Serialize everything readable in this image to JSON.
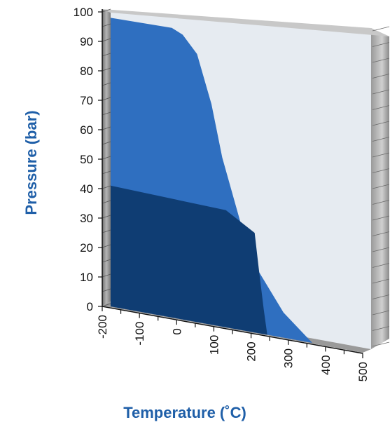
{
  "chart_data": {
    "type": "area",
    "title": "",
    "xlabel": "Temperature (˚C)",
    "ylabel": "Pressure (bar)",
    "xlim": [
      -200,
      500
    ],
    "ylim": [
      0,
      100
    ],
    "x_ticks": [
      "-200",
      "-100",
      "0",
      "100",
      "200",
      "300",
      "400",
      "500"
    ],
    "y_ticks": [
      "0",
      "10",
      "20",
      "30",
      "40",
      "50",
      "60",
      "70",
      "80",
      "90",
      "100"
    ],
    "grid": false,
    "legend": "none",
    "series": [
      {
        "color": "#2f6fc0",
        "points": [
          [
            -200,
            98
          ],
          [
            -30,
            96
          ],
          [
            0,
            94
          ],
          [
            40,
            88
          ],
          [
            80,
            72
          ],
          [
            110,
            55
          ],
          [
            160,
            35
          ],
          [
            210,
            20
          ],
          [
            280,
            8
          ],
          [
            360,
            0
          ]
        ]
      },
      {
        "color": "#0f3d73",
        "points": [
          [
            -200,
            41
          ],
          [
            120,
            38
          ],
          [
            200,
            32
          ],
          [
            210,
            22
          ],
          [
            225,
            8
          ],
          [
            235,
            0
          ]
        ]
      }
    ],
    "colors": {
      "background_wall": "#e6ebf1",
      "axis_text": "#111111",
      "axis_title": "#1f5fa8",
      "side_wall": "#8c8c8c"
    }
  }
}
